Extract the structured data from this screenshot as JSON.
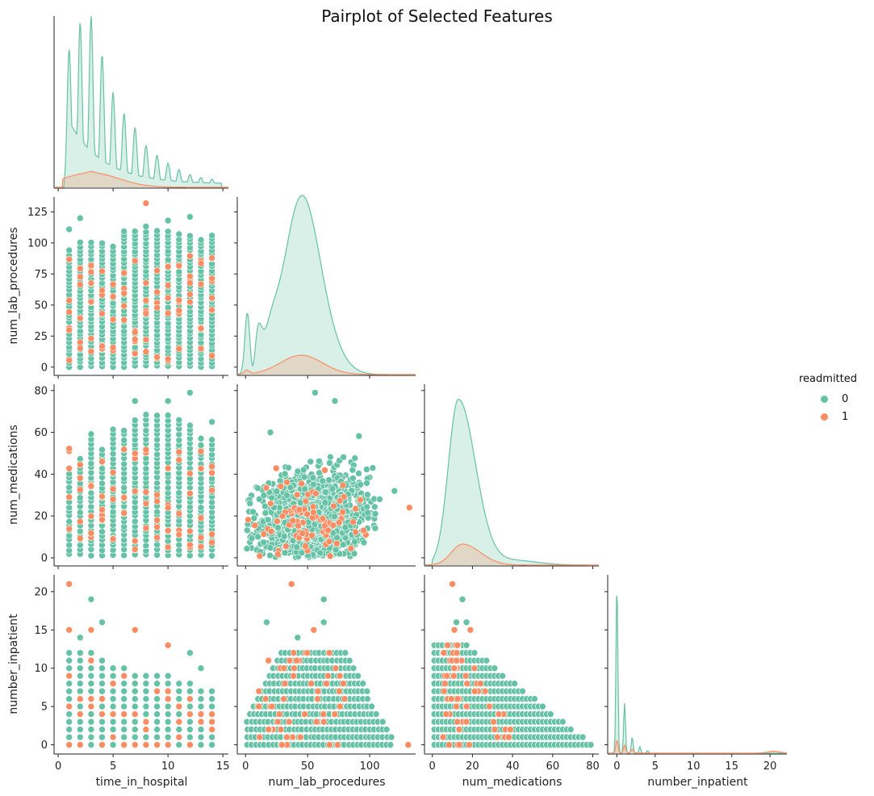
{
  "chart_data": {
    "type": "scatter",
    "title": "Pairplot of Selected Features",
    "variables": [
      "time_in_hospital",
      "num_lab_procedures",
      "num_medications",
      "number_inpatient"
    ],
    "axis_ticks": {
      "time_in_hospital": [
        0,
        5,
        10,
        15
      ],
      "num_lab_procedures_y": [
        0,
        25,
        50,
        75,
        100,
        125
      ],
      "num_lab_procedures_x": [
        0,
        50,
        100
      ],
      "num_medications_y": [
        0,
        20,
        40,
        60,
        80
      ],
      "num_medications_x": [
        0,
        20,
        40,
        60,
        80
      ],
      "number_inpatient": [
        0,
        5,
        10,
        15,
        20
      ]
    },
    "axis_ranges": {
      "time_in_hospital": [
        -0.3,
        15.5
      ],
      "num_lab_procedures": [
        -6,
        137
      ],
      "num_medications": [
        -3.5,
        83
      ],
      "number_inpatient": [
        -1.1,
        22.2
      ]
    },
    "legend": {
      "title": "readmitted",
      "placement": "right",
      "entries": [
        {
          "label": "0",
          "color": "#66c2a5"
        },
        {
          "label": "1",
          "color": "#fc8d62"
        }
      ]
    },
    "layout": "corner pairplot (lower triangle scatter, diagonal KDE)",
    "outliers": {
      "time_vs_lab_max": [
        9,
        132
      ],
      "inpatient_max": [
        1,
        21
      ],
      "lab_vs_med_max": [
        132,
        24
      ]
    }
  }
}
